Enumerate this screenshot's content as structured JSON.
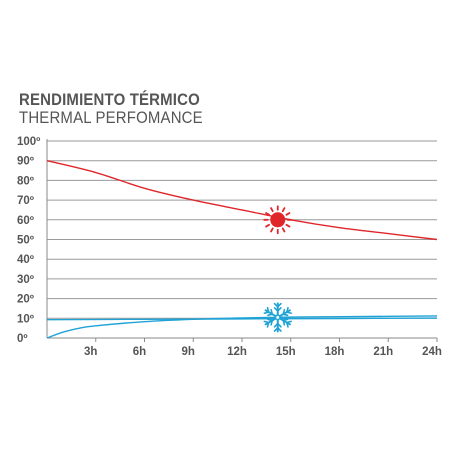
{
  "title": "RENDIMIENTO TÉRMICO",
  "subtitle": "THERMAL PERFOMANCE",
  "chart_data": {
    "type": "line",
    "title": "RENDIMIENTO TÉRMICO",
    "subtitle": "THERMAL PERFOMANCE",
    "xlabel": "",
    "ylabel": "",
    "x_tick_labels": [
      "3h",
      "6h",
      "9h",
      "12h",
      "15h",
      "18h",
      "21h",
      "24h"
    ],
    "x_tick_values": [
      3,
      6,
      9,
      12,
      15,
      18,
      21,
      24
    ],
    "y_tick_labels": [
      "0º",
      "10º",
      "20º",
      "30º",
      "40º",
      "50º",
      "60º",
      "70º",
      "80º",
      "90º",
      "100º"
    ],
    "y_tick_values": [
      0,
      10,
      20,
      30,
      40,
      50,
      60,
      70,
      80,
      90,
      100
    ],
    "xlim": [
      0,
      24
    ],
    "ylim": [
      0,
      100
    ],
    "grid": {
      "horizontal": true,
      "vertical": false
    },
    "legend": "none",
    "series": [
      {
        "color": "#e0262b",
        "marker_icon": "sun-icon",
        "marker_x": 14.2,
        "marker_y": 60,
        "x": [
          0,
          3,
          6,
          9,
          12,
          15,
          18,
          21,
          24
        ],
        "values": [
          90,
          84,
          76,
          70,
          65,
          60,
          56,
          53,
          50
        ]
      },
      {
        "color": "#1fa3d6",
        "marker_icon": "snowflake-icon",
        "marker_x": 14.2,
        "marker_y": 10.5,
        "x": [
          0,
          1,
          2,
          3,
          6,
          9,
          12,
          15,
          18,
          21,
          24
        ],
        "values": [
          0,
          3,
          5,
          6.2,
          8.3,
          9.5,
          10.2,
          10.6,
          10.8,
          11,
          11.2
        ]
      },
      {
        "color": "#1fa3d6",
        "x": [
          0,
          6,
          12,
          18,
          24
        ],
        "values": [
          9.3,
          9.5,
          9.7,
          9.9,
          10.1
        ]
      }
    ]
  }
}
